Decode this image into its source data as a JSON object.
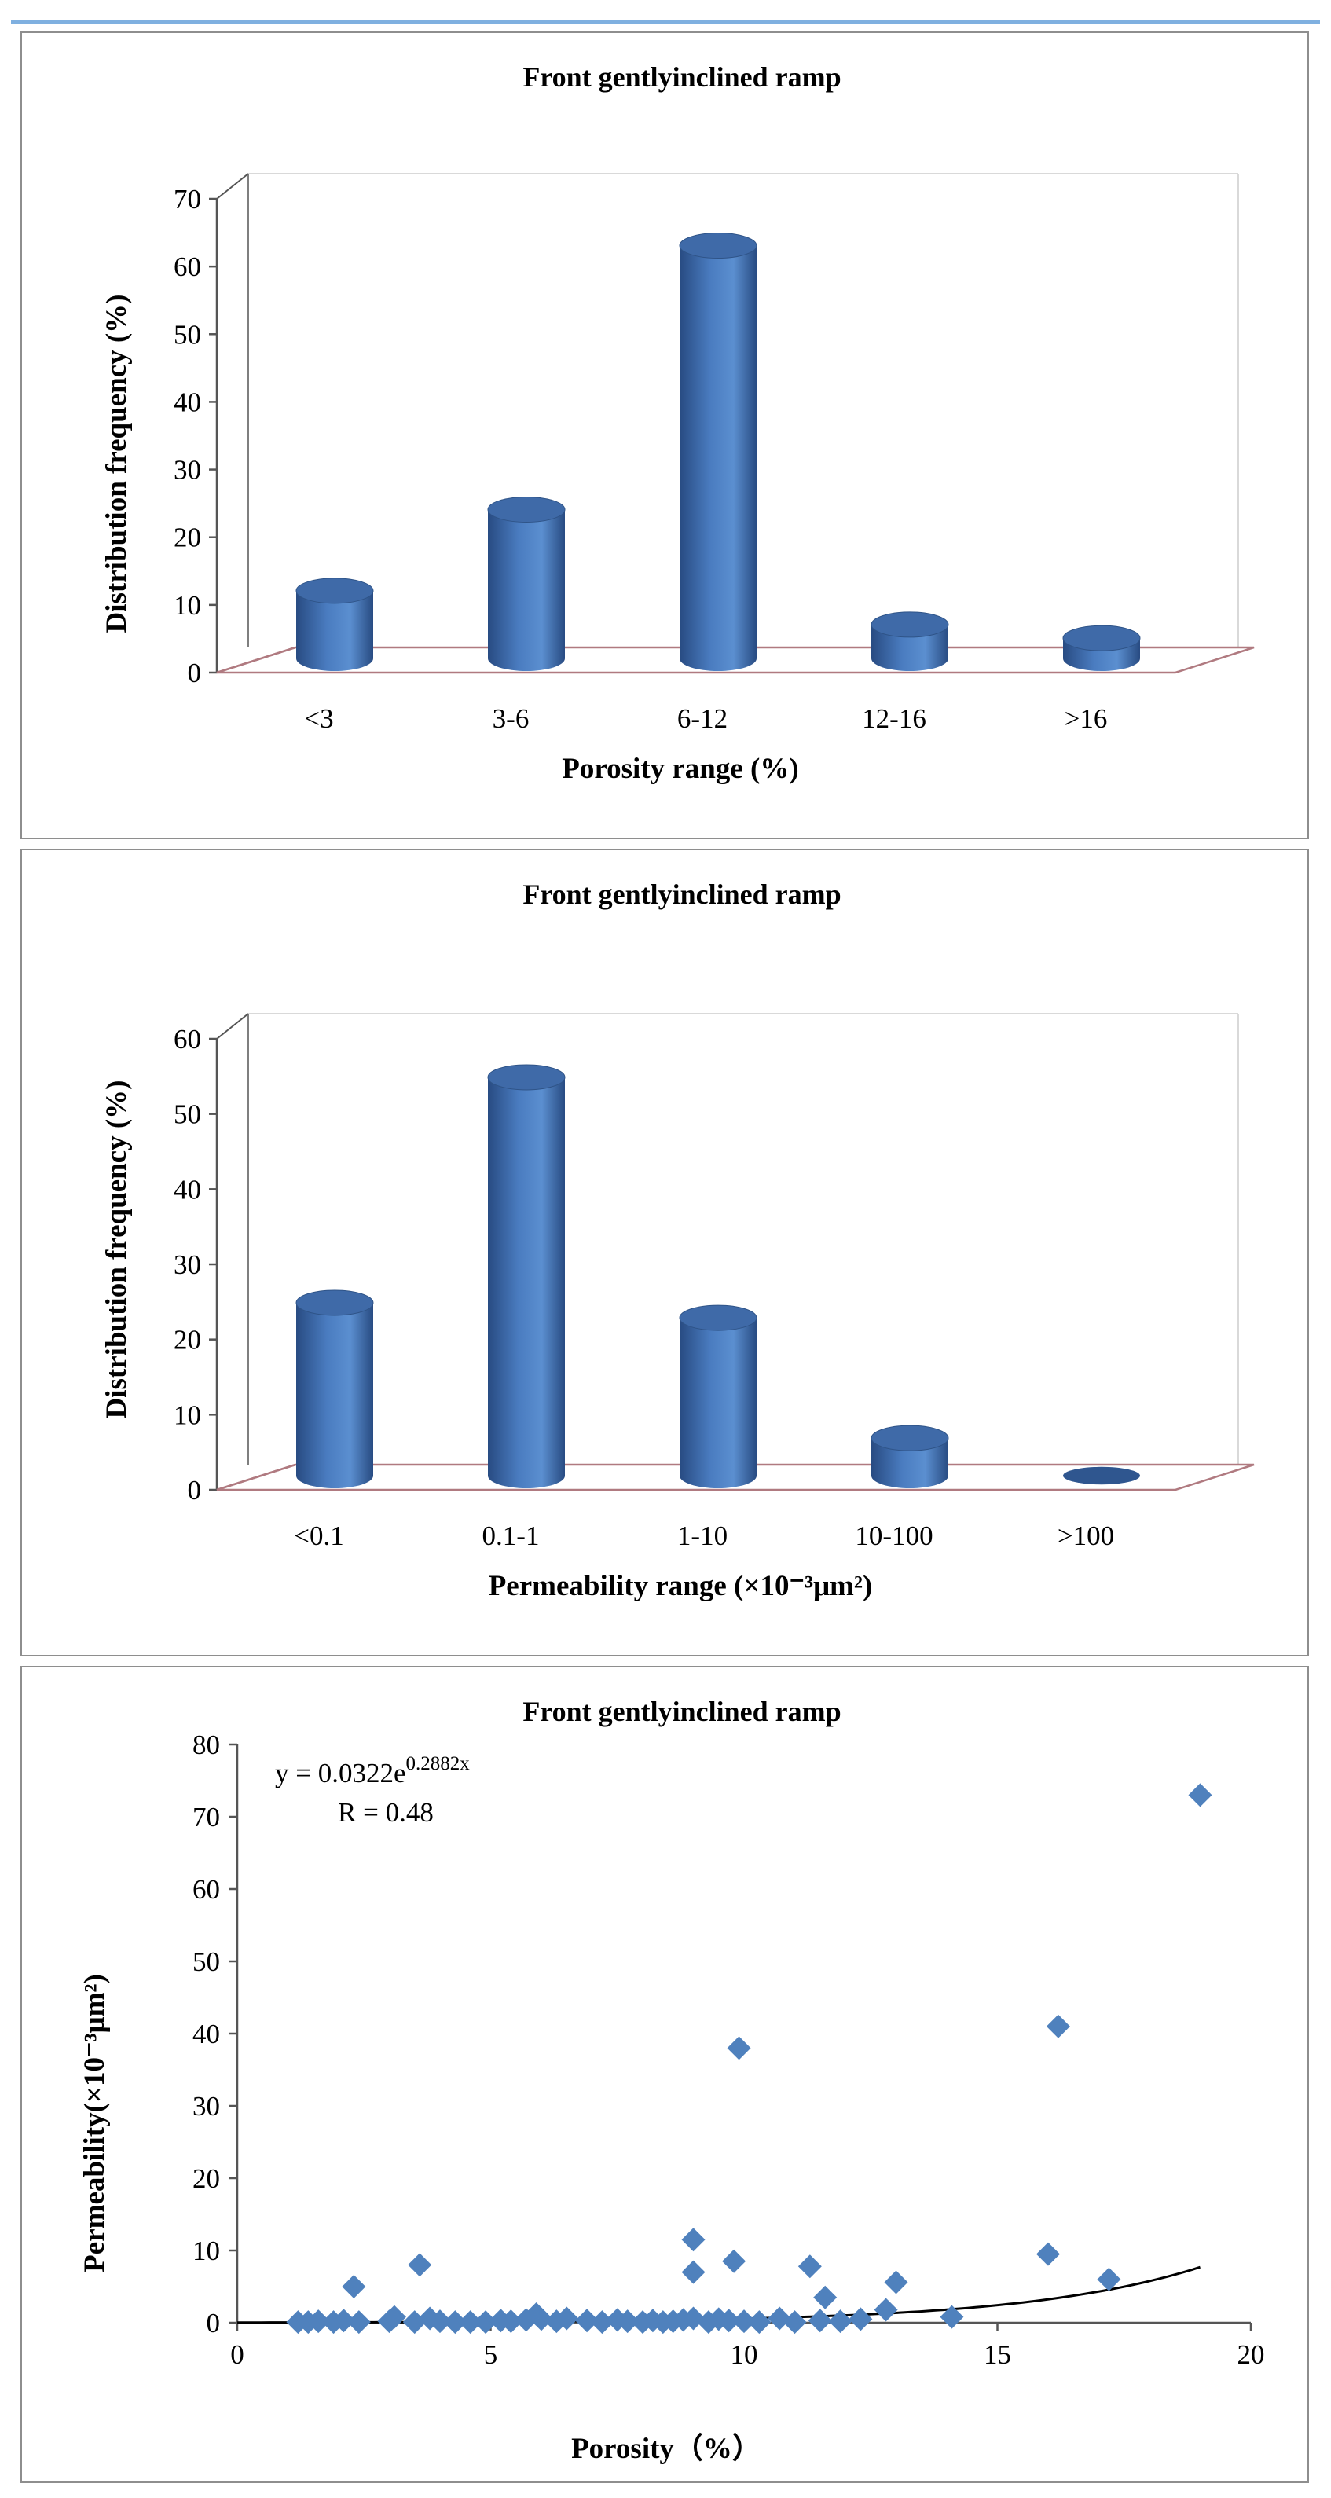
{
  "colors": {
    "bar_top": "#3f6aa8",
    "bar_side": "#4a7cc0",
    "bar_dark": "#284b82",
    "floor": "#b07a80",
    "marker": "#4f81bd",
    "trend": "#000000",
    "border": "#8e8e8e"
  },
  "chart_data": [
    {
      "type": "bar",
      "title": "Front gentlyinclined ramp",
      "categories": [
        "<3",
        "3-6",
        "6-12",
        "12-16",
        ">16"
      ],
      "values": [
        10,
        22,
        61,
        5,
        3
      ],
      "xlabel": "Porosity range (%)",
      "ylabel": "Distribution frequency (%)",
      "ylim": [
        0,
        70
      ],
      "yticks": [
        "0",
        "10",
        "20",
        "30",
        "40",
        "50",
        "60",
        "70"
      ]
    },
    {
      "type": "bar",
      "title": "Front gentlyinclined ramp",
      "categories": [
        "<0.1",
        "0.1-1",
        "1-10",
        "10-100",
        ">100"
      ],
      "values": [
        23,
        53,
        21,
        5,
        0
      ],
      "xlabel": "Permeability range (×10⁻³μm²)",
      "ylabel": "Distribution frequency (%)",
      "ylim": [
        0,
        60
      ],
      "yticks": [
        "0",
        "10",
        "20",
        "30",
        "40",
        "50",
        "60"
      ]
    },
    {
      "type": "scatter",
      "title": "Front gentlyinclined ramp",
      "xlabel": "Porosity（%）",
      "ylabel": "Permeability(×10⁻³μm²)",
      "xlim": [
        0,
        20
      ],
      "ylim": [
        0,
        80
      ],
      "xticks": [
        "0",
        "5",
        "10",
        "15",
        "20"
      ],
      "yticks": [
        "0",
        "10",
        "20",
        "30",
        "40",
        "50",
        "60",
        "70",
        "80"
      ],
      "equation": "y = 0.0322e",
      "equation_exponent": "0.2882x",
      "r_label": "R = 0.48",
      "trend": {
        "form": "exponential",
        "a": 0.0322,
        "b": 0.2882,
        "x_range": [
          0,
          19
        ]
      },
      "points": [
        [
          1.2,
          0.1
        ],
        [
          1.4,
          0.1
        ],
        [
          1.6,
          0.2
        ],
        [
          1.9,
          0.1
        ],
        [
          2.1,
          0.3
        ],
        [
          2.3,
          5.0
        ],
        [
          2.4,
          0.1
        ],
        [
          3.0,
          0.2
        ],
        [
          3.1,
          0.8
        ],
        [
          3.5,
          0.1
        ],
        [
          3.6,
          8.0
        ],
        [
          3.8,
          0.6
        ],
        [
          4.0,
          0.2
        ],
        [
          4.3,
          0.1
        ],
        [
          4.6,
          0.1
        ],
        [
          4.9,
          0.1
        ],
        [
          5.2,
          0.3
        ],
        [
          5.4,
          0.2
        ],
        [
          5.7,
          0.4
        ],
        [
          5.9,
          1.2
        ],
        [
          6.0,
          0.5
        ],
        [
          6.3,
          0.2
        ],
        [
          6.5,
          0.6
        ],
        [
          6.9,
          0.3
        ],
        [
          7.2,
          0.1
        ],
        [
          7.5,
          0.4
        ],
        [
          7.7,
          0.2
        ],
        [
          8.0,
          0.1
        ],
        [
          8.2,
          0.3
        ],
        [
          8.4,
          0.1
        ],
        [
          8.6,
          0.2
        ],
        [
          8.8,
          0.4
        ],
        [
          9.0,
          0.6
        ],
        [
          9.0,
          11.5
        ],
        [
          9.0,
          7.0
        ],
        [
          9.3,
          0.1
        ],
        [
          9.5,
          0.5
        ],
        [
          9.7,
          0.3
        ],
        [
          9.8,
          8.5
        ],
        [
          9.9,
          38.0
        ],
        [
          10.0,
          0.2
        ],
        [
          10.3,
          0.1
        ],
        [
          10.7,
          0.6
        ],
        [
          11.0,
          0.1
        ],
        [
          11.3,
          7.8
        ],
        [
          11.5,
          0.3
        ],
        [
          11.6,
          3.5
        ],
        [
          11.9,
          0.2
        ],
        [
          12.3,
          0.5
        ],
        [
          12.8,
          1.8
        ],
        [
          13.0,
          5.6
        ],
        [
          14.1,
          0.8
        ],
        [
          16.0,
          9.5
        ],
        [
          16.2,
          41.0
        ],
        [
          17.2,
          6.0
        ],
        [
          19.0,
          73.0
        ]
      ]
    }
  ]
}
